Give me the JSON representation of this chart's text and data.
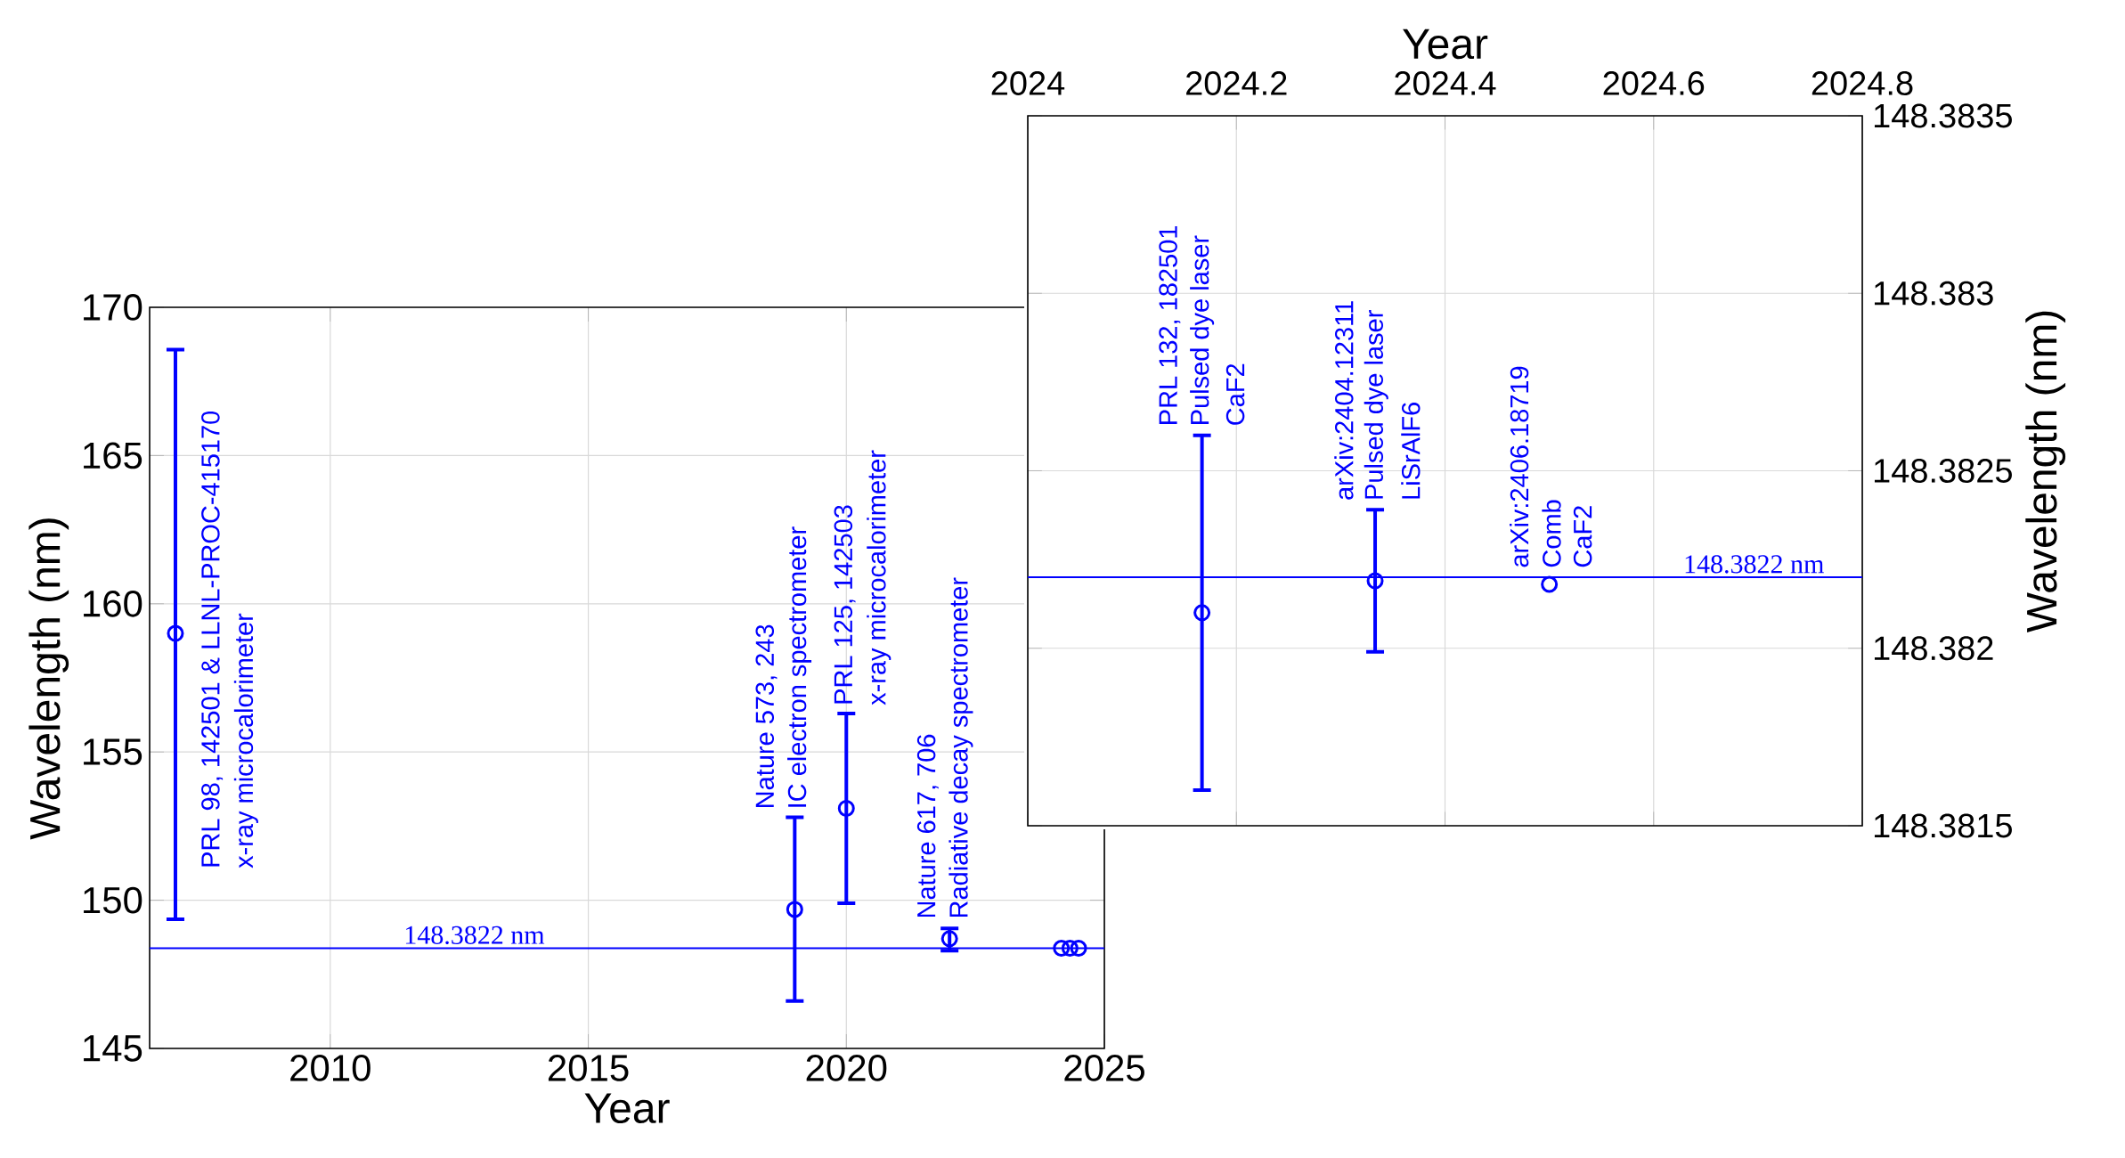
{
  "chart_data": [
    {
      "type": "scatter",
      "xlabel": "Year",
      "ylabel": "Wavelength (nm)",
      "color": "#0000ff",
      "marker": "circle",
      "grid": true,
      "x": [
        2007,
        2019,
        2020,
        2022,
        2024.167,
        2024.333,
        2024.5
      ],
      "values": [
        159,
        149.69,
        153.1,
        148.7,
        148.38,
        148.38,
        148.38
      ],
      "errors": [
        [
          149.36,
          168.57
        ],
        [
          146.6,
          152.8
        ],
        [
          149.9,
          156.3
        ],
        [
          148.3,
          149.05
        ],
        null,
        null,
        null
      ],
      "xlim": [
        2006.5,
        2025
      ],
      "ylim": [
        145,
        170
      ],
      "xticks": [
        2010,
        2015,
        2020,
        2025
      ],
      "yticks": [
        145,
        150,
        155,
        160,
        165,
        170
      ],
      "ref_lines": [
        {
          "axis": "y",
          "value": 148.3822,
          "color": "#0000ff",
          "label": "148.3822 nm"
        }
      ],
      "annotations": [
        "PRL 98, 142501 & LLNL-PROC-415170",
        "x-ray microcalorimeter",
        "Nature 573, 243",
        "IC electron spectrometer",
        "PRL 125, 142503",
        "x-ray microcalorimeter",
        "Nature 617, 706",
        "Radiative decay spectrometer"
      ]
    },
    {
      "type": "scatter",
      "xlabel": "Year",
      "ylabel": "Wavelength (nm)",
      "color": "#0000ff",
      "marker": "circle",
      "grid": true,
      "x": [
        2024.167,
        2024.333,
        2024.5
      ],
      "values": [
        148.3821,
        148.38219,
        148.38218
      ],
      "errors": [
        [
          148.3816,
          148.3826
        ],
        [
          148.38199,
          148.38239
        ],
        null
      ],
      "xlim": [
        2024,
        2024.8
      ],
      "ylim": [
        148.3815,
        148.3835
      ],
      "xticks": [
        2024,
        2024.2,
        2024.4,
        2024.6,
        2024.8
      ],
      "yticks": [
        148.3815,
        148.382,
        148.3825,
        148.383,
        148.3835
      ],
      "ref_lines": [
        {
          "axis": "y",
          "value": 148.3822,
          "color": "#0000ff",
          "label": "148.3822 nm"
        }
      ],
      "annotations": [
        "PRL 132, 182501",
        "Pulsed dye laser",
        "CaF2",
        "arXiv:2404.12311",
        "Pulsed dye laser",
        "LiSrAlF6",
        "arXiv:2406.18719",
        "Comb",
        "CaF2"
      ]
    }
  ]
}
